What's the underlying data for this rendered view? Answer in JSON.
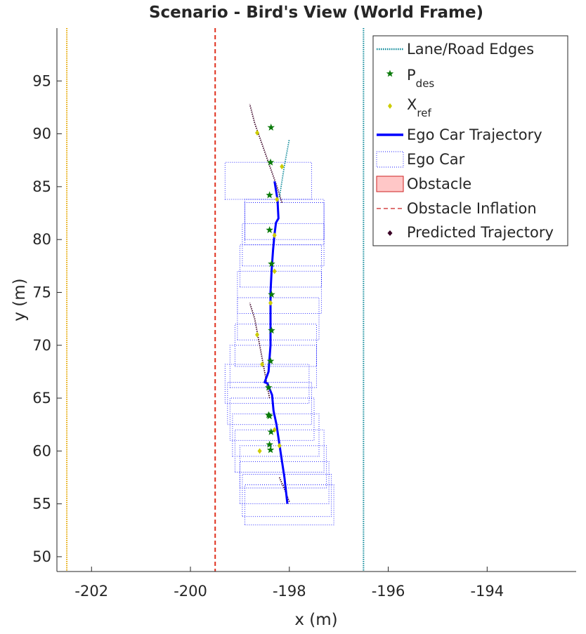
{
  "chart_data": {
    "type": "scatter",
    "title": "Scenario - Bird's View (World Frame)",
    "xlabel": "x (m)",
    "ylabel": "y (m)",
    "xlim": [
      -202.7,
      -192.2
    ],
    "ylim": [
      48.6,
      100.0
    ],
    "x_ticks": [
      "-202",
      "-200",
      "-198",
      "-196",
      "-194"
    ],
    "x_tick_values": [
      -202,
      -200,
      -198,
      -196,
      -194
    ],
    "y_ticks": [
      "50",
      "55",
      "60",
      "65",
      "70",
      "75",
      "80",
      "85",
      "90",
      "95"
    ],
    "y_tick_values": [
      50,
      55,
      60,
      65,
      70,
      75,
      80,
      85,
      90,
      95
    ],
    "grid": false,
    "legend_position": "top-right",
    "legend": [
      {
        "label": "Lane/Road Edges",
        "main": "Lane/Road Edges",
        "sub": ""
      },
      {
        "label": "P_des",
        "main": "P",
        "sub": "des"
      },
      {
        "label": "X_ref",
        "main": "X",
        "sub": "ref"
      },
      {
        "label": "Ego Car Trajectory",
        "main": "Ego Car Trajectory",
        "sub": ""
      },
      {
        "label": "Ego Car",
        "main": "Ego Car",
        "sub": ""
      },
      {
        "label": "Obstacle",
        "main": "Obstacle",
        "sub": ""
      },
      {
        "label": "Obstacle Inflation",
        "main": "Obstacle Inflation",
        "sub": ""
      },
      {
        "label": "Predicted Trajectory",
        "main": "Predicted Trajectory",
        "sub": ""
      }
    ],
    "colors": {
      "lane_left": "#e6a800",
      "lane_mid": "#e0301e",
      "lane_right": "#0e8a9a",
      "p_des": "#0a7a0a",
      "x_ref": "#cccc00",
      "ego_trajectory": "#0000ff",
      "ego_car": "#1a1aff",
      "obstacle_fill": "#ffc7c7",
      "obstacle_edge": "#cc2222",
      "predicted": "#3a0025"
    },
    "lane_edges": [
      {
        "x": -202.5,
        "style": "dotted",
        "color_key": "lane_left"
      },
      {
        "x": -199.5,
        "style": "dashed",
        "color_key": "lane_mid"
      },
      {
        "x": -196.5,
        "style": "dotted",
        "color_key": "lane_right"
      }
    ],
    "ego_trajectory": {
      "x": [
        -198.04,
        -198.1,
        -198.18,
        -198.26,
        -198.32,
        -198.35,
        -198.4,
        -198.44,
        -198.5,
        -198.42,
        -198.38,
        -198.38,
        -198.38,
        -198.36,
        -198.33,
        -198.3,
        -198.27,
        -198.22,
        -198.24,
        -198.3
      ],
      "y": [
        55.0,
        57.5,
        60.0,
        62.5,
        63.8,
        65.3,
        65.9,
        66.4,
        66.5,
        67.5,
        70.0,
        72.5,
        75.0,
        77.0,
        79.0,
        80.5,
        81.6,
        82.0,
        83.8,
        85.5
      ]
    },
    "p_des": {
      "x": [
        -198.38,
        -198.4,
        -198.37,
        -198.42,
        -198.42,
        -198.38,
        -198.36,
        -198.36,
        -198.36,
        -198.4,
        -198.4,
        -198.38,
        -198.37,
        -198.4
      ],
      "y": [
        60.1,
        60.6,
        61.8,
        63.4,
        66.0,
        68.5,
        71.4,
        74.8,
        77.7,
        80.9,
        84.2,
        87.3,
        90.6,
        63.3
      ]
    },
    "x_ref": {
      "x": [
        -198.6,
        -198.2,
        -198.3,
        -198.55,
        -198.65,
        -198.38,
        -198.3,
        -198.3,
        -198.25,
        -198.65,
        -198.15
      ],
      "y": [
        60.0,
        60.5,
        62.0,
        68.2,
        71.0,
        74.0,
        77.0,
        80.4,
        83.8,
        90.1,
        86.9
      ]
    },
    "predicted_trajectories": [
      {
        "color_key": "predicted",
        "x": [
          -198.0,
          -198.1,
          -198.2
        ],
        "y": [
          55.2,
          56.4,
          57.5
        ]
      },
      {
        "color_key": "predicted",
        "x": [
          -198.4,
          -198.5,
          -198.6,
          -198.7,
          -198.8
        ],
        "y": [
          65.0,
          67.5,
          70.0,
          72.5,
          74.0
        ]
      },
      {
        "color_key": "predicted",
        "x": [
          -198.15,
          -198.25,
          -198.4,
          -198.55,
          -198.7,
          -198.8
        ],
        "y": [
          83.5,
          85.0,
          87.0,
          89.0,
          91.0,
          92.8
        ]
      },
      {
        "color_key": "lane_right",
        "x": [
          -198.2,
          -198.1,
          -198.0
        ],
        "y": [
          84.0,
          87.0,
          89.5
        ]
      }
    ],
    "ego_car_boxes": [
      [
        [
          -198.9,
          53.0
        ],
        [
          -197.1,
          53.0
        ],
        [
          -197.1,
          56.8
        ],
        [
          -198.9,
          56.8
        ]
      ],
      [
        [
          -198.95,
          53.8
        ],
        [
          -197.15,
          53.8
        ],
        [
          -197.15,
          57.8
        ],
        [
          -198.95,
          57.8
        ]
      ],
      [
        [
          -199.0,
          55.0
        ],
        [
          -197.2,
          55.0
        ],
        [
          -197.2,
          59.0
        ],
        [
          -199.0,
          59.0
        ]
      ],
      [
        [
          -199.0,
          56.5
        ],
        [
          -197.25,
          56.5
        ],
        [
          -197.25,
          60.5
        ],
        [
          -199.0,
          60.5
        ]
      ],
      [
        [
          -199.1,
          58.0
        ],
        [
          -197.3,
          58.0
        ],
        [
          -197.3,
          62.0
        ],
        [
          -199.1,
          62.0
        ]
      ],
      [
        [
          -199.15,
          59.5
        ],
        [
          -197.4,
          59.5
        ],
        [
          -197.4,
          63.5
        ],
        [
          -199.15,
          63.5
        ]
      ],
      [
        [
          -199.2,
          61.0
        ],
        [
          -197.5,
          61.0
        ],
        [
          -197.5,
          65.0
        ],
        [
          -199.2,
          65.0
        ]
      ],
      [
        [
          -199.25,
          62.5
        ],
        [
          -197.55,
          62.5
        ],
        [
          -197.55,
          66.5
        ],
        [
          -199.25,
          66.5
        ]
      ],
      [
        [
          -199.3,
          64.5
        ],
        [
          -197.6,
          64.5
        ],
        [
          -197.6,
          68.2
        ],
        [
          -199.3,
          68.2
        ]
      ],
      [
        [
          -199.2,
          66.0
        ],
        [
          -197.45,
          66.0
        ],
        [
          -197.45,
          70.0
        ],
        [
          -199.2,
          70.0
        ]
      ],
      [
        [
          -199.1,
          68.0
        ],
        [
          -197.45,
          68.0
        ],
        [
          -197.45,
          72.0
        ],
        [
          -199.1,
          72.0
        ]
      ],
      [
        [
          -199.05,
          70.5
        ],
        [
          -197.4,
          70.5
        ],
        [
          -197.4,
          74.5
        ],
        [
          -199.05,
          74.5
        ]
      ],
      [
        [
          -199.05,
          73.0
        ],
        [
          -197.35,
          73.0
        ],
        [
          -197.35,
          77.0
        ],
        [
          -199.05,
          77.0
        ]
      ],
      [
        [
          -199.0,
          75.5
        ],
        [
          -197.35,
          75.5
        ],
        [
          -197.35,
          79.5
        ],
        [
          -199.0,
          79.5
        ]
      ],
      [
        [
          -198.95,
          77.5
        ],
        [
          -197.3,
          77.5
        ],
        [
          -197.3,
          81.5
        ],
        [
          -198.95,
          81.5
        ]
      ],
      [
        [
          -198.9,
          79.5
        ],
        [
          -197.3,
          79.5
        ],
        [
          -197.3,
          83.5
        ],
        [
          -198.9,
          83.5
        ]
      ],
      [
        [
          -198.9,
          80.0
        ],
        [
          -197.3,
          80.0
        ],
        [
          -197.3,
          83.8
        ],
        [
          -198.9,
          83.8
        ]
      ],
      [
        [
          -199.3,
          83.8
        ],
        [
          -197.55,
          83.8
        ],
        [
          -197.55,
          87.3
        ],
        [
          -199.3,
          87.3
        ]
      ]
    ]
  }
}
